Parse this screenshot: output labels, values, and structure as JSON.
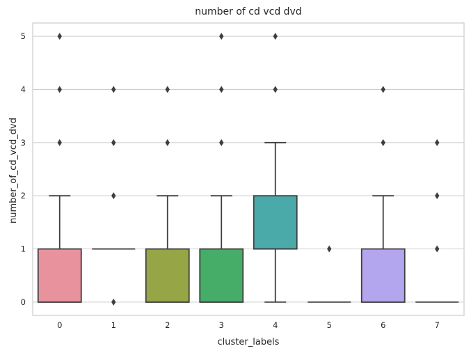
{
  "chart_data": {
    "type": "box",
    "title": "number of cd vcd dvd",
    "xlabel": "cluster_labels",
    "ylabel": "number_of_cd_vcd_dvd",
    "categories": [
      "0",
      "1",
      "2",
      "3",
      "4",
      "5",
      "6",
      "7"
    ],
    "ylim": [
      -0.25,
      5.25
    ],
    "yticks": [
      0,
      1,
      2,
      3,
      4,
      5
    ],
    "grid": true,
    "boxes": [
      {
        "category": "0",
        "color": "#e8929e",
        "q1": 0,
        "median": 0,
        "q3": 1,
        "whisker_low": 0,
        "whisker_high": 2,
        "fliers": [
          3,
          4,
          5
        ]
      },
      {
        "category": "1",
        "color": "#c9a06a",
        "q1": 1,
        "median": 1,
        "q3": 1,
        "whisker_low": 1,
        "whisker_high": 1,
        "fliers": [
          0,
          2,
          3,
          4
        ]
      },
      {
        "category": "2",
        "color": "#96a545",
        "q1": 0,
        "median": 0,
        "q3": 1,
        "whisker_low": 0,
        "whisker_high": 2,
        "fliers": [
          3,
          4
        ]
      },
      {
        "category": "3",
        "color": "#46ad68",
        "q1": 0,
        "median": 0,
        "q3": 1,
        "whisker_low": 0,
        "whisker_high": 2,
        "fliers": [
          3,
          4,
          5
        ]
      },
      {
        "category": "4",
        "color": "#4aaaa9",
        "q1": 1,
        "median": 1,
        "q3": 2,
        "whisker_low": 0,
        "whisker_high": 3,
        "fliers": [
          4,
          5
        ]
      },
      {
        "category": "5",
        "color": "#52a3d1",
        "q1": 0,
        "median": 0,
        "q3": 0,
        "whisker_low": 0,
        "whisker_high": 0,
        "fliers": [
          1
        ]
      },
      {
        "category": "6",
        "color": "#b4a5ef",
        "q1": 0,
        "median": 0,
        "q3": 1,
        "whisker_low": 0,
        "whisker_high": 2,
        "fliers": [
          3,
          4
        ]
      },
      {
        "category": "7",
        "color": "#e890d8",
        "q1": 0,
        "median": 0,
        "q3": 0,
        "whisker_low": 0,
        "whisker_high": 0,
        "fliers": [
          1,
          2,
          3
        ]
      }
    ]
  }
}
